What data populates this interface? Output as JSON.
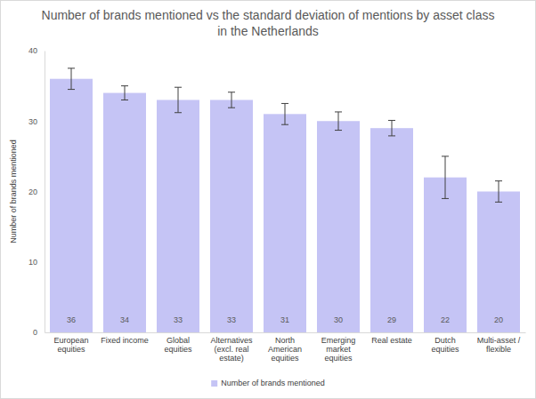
{
  "chart_data": {
    "type": "bar",
    "title": "Number of brands mentioned vs the standard deviation of mentions by asset class in the Netherlands",
    "y_label": "Number of brands mentioned",
    "categories": [
      "European equities",
      "Fixed income",
      "Global equities",
      "Alternatives (excl. real estate)",
      "North American equities",
      "Emerging market equities",
      "Real estate",
      "Dutch equities",
      "Multi-asset / flexible"
    ],
    "series": [
      {
        "name": "Number of brands mentioned",
        "color": "#c5c4f5",
        "values": [
          36,
          34,
          33,
          33,
          31,
          30,
          29,
          22,
          20
        ],
        "errors": [
          1.5,
          1,
          1.8,
          1.1,
          1.5,
          1.3,
          1.1,
          3,
          1.5
        ]
      }
    ],
    "ylim": [
      0,
      40
    ],
    "yticks": [
      0,
      10,
      20,
      30,
      40
    ],
    "grid": false,
    "data_labels": true,
    "legend": "bottom"
  }
}
